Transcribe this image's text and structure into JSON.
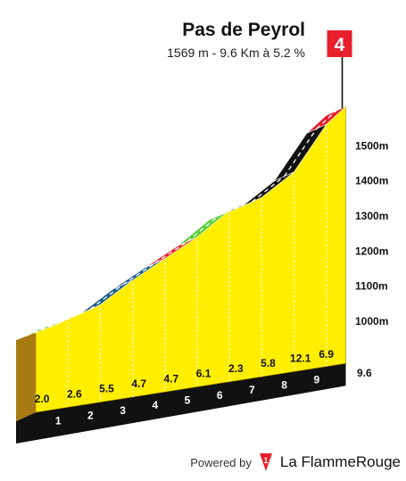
{
  "header": {
    "title": "Pas de Peyrol",
    "subtitle": "1569 m - 9.6 Km à 5.2 %"
  },
  "flag": {
    "label": "4",
    "color": "#e8202e"
  },
  "footer": {
    "powered_by": "Powered by",
    "brand": "La FlammeRouge",
    "logo_char": "1"
  },
  "chart_data": {
    "type": "area",
    "title": "Pas de Peyrol",
    "distance_km": 9.6,
    "end_label": "9.6",
    "y_unit": "m",
    "y_ticks": [
      "1000m",
      "1100m",
      "1200m",
      "1300m",
      "1400m",
      "1500m"
    ],
    "y_tick_values": [
      1000,
      1100,
      1200,
      1300,
      1400,
      1500
    ],
    "km_marks": [
      "1",
      "2",
      "3",
      "4",
      "5",
      "6",
      "7",
      "8",
      "9"
    ],
    "profile": [
      {
        "km": 0,
        "alt": 1069
      },
      {
        "km": 1,
        "alt": 1089
      },
      {
        "km": 2,
        "alt": 1115
      },
      {
        "km": 3,
        "alt": 1170
      },
      {
        "km": 4,
        "alt": 1217
      },
      {
        "km": 5,
        "alt": 1264
      },
      {
        "km": 6,
        "alt": 1325
      },
      {
        "km": 7,
        "alt": 1348
      },
      {
        "km": 8,
        "alt": 1406
      },
      {
        "km": 9,
        "alt": 1527
      },
      {
        "km": 9.6,
        "alt": 1569
      }
    ],
    "segment_gradients": [
      "2.0",
      "2.6",
      "5.5",
      "4.7",
      "4.7",
      "6.1",
      "2.3",
      "5.8",
      "12.1",
      "6.9"
    ],
    "segment_colors": [
      "#5dcf3a",
      "#5dcf3a",
      "#1d5c8a",
      "#1d5c8a",
      "#e8202e",
      "#5dcf3a",
      "#1d5c8a",
      "#111111",
      "#111111",
      "#e8202e"
    ],
    "fill_color": "#ffee00"
  }
}
